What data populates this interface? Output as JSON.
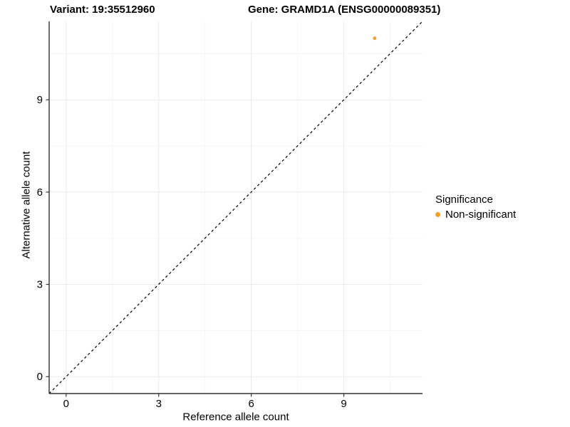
{
  "titles": {
    "variant": "Variant: 19:35512960",
    "gene": "Gene: GRAMD1A (ENSG00000089351)"
  },
  "chart_data": {
    "type": "scatter",
    "title_left": "Variant: 19:35512960",
    "title_right": "Gene: GRAMD1A (ENSG00000089351)",
    "xlabel": "Reference allele count",
    "ylabel": "Alternative allele count",
    "xlim": [
      0,
      11
    ],
    "ylim": [
      0,
      11
    ],
    "expansion": 0.55,
    "xticks": [
      0,
      3,
      6,
      9
    ],
    "yticks": [
      0,
      3,
      6,
      9
    ],
    "xminor": [
      1.5,
      4.5,
      7.5,
      10.5
    ],
    "yminor": [
      1.5,
      4.5,
      7.5,
      10.5
    ],
    "grid": true,
    "points": [
      {
        "x": 10,
        "y": 11,
        "series": "Non-significant"
      }
    ],
    "reference_line": {
      "slope": 1,
      "intercept": 0,
      "style": "dashed",
      "color": "#000000"
    },
    "legend": {
      "title": "Significance",
      "position": "right",
      "items": [
        {
          "label": "Non-significant",
          "color": "#F5A02A"
        }
      ]
    },
    "colors": {
      "point": "#F5A02A",
      "axis_line": "#333333",
      "tick": "#333333",
      "grid_major": "#EBEBEB",
      "grid_minor": "#F5F5F5",
      "tick_label": "#000000",
      "background": "#FFFFFF"
    },
    "point_radius_px": 2.5
  }
}
